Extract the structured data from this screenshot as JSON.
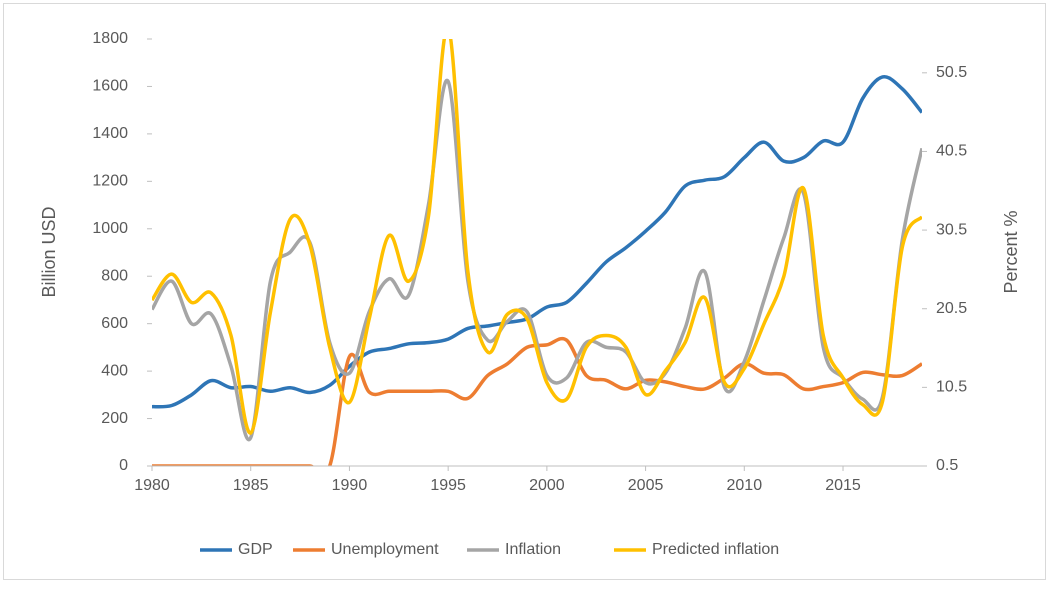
{
  "chart_data": {
    "type": "line",
    "x": [
      1980,
      1981,
      1982,
      1983,
      1984,
      1985,
      1986,
      1987,
      1988,
      1989,
      1990,
      1991,
      1992,
      1993,
      1994,
      1995,
      1996,
      1997,
      1998,
      1999,
      2000,
      2001,
      2002,
      2003,
      2004,
      2005,
      2006,
      2007,
      2008,
      2009,
      2010,
      2011,
      2012,
      2013,
      2014,
      2015,
      2016,
      2017,
      2018,
      2019
    ],
    "xlim": [
      1980,
      2019
    ],
    "xticks": [
      1980,
      1985,
      1990,
      1995,
      2000,
      2005,
      2010,
      2015
    ],
    "ylabel": "Billion USD",
    "ylim": [
      0,
      1800
    ],
    "yticks": [
      0,
      200,
      400,
      600,
      800,
      1000,
      1200,
      1400,
      1600,
      1800
    ],
    "y2label": "Percent %",
    "y2lim": [
      0.5,
      54.8
    ],
    "y2ticks": [
      0.5,
      10.5,
      20.5,
      30.5,
      40.5,
      50.5
    ],
    "legend": "bottom",
    "series": [
      {
        "name": "GDP",
        "color": "#2e75b6",
        "values": [
          250,
          255,
          300,
          360,
          330,
          335,
          315,
          330,
          310,
          340,
          420,
          480,
          495,
          515,
          520,
          535,
          580,
          590,
          605,
          620,
          670,
          690,
          770,
          860,
          920,
          990,
          1070,
          1180,
          1205,
          1220,
          1300,
          1365,
          1285,
          1300,
          1370,
          1365,
          1550,
          1640,
          1590,
          1490
        ]
      },
      {
        "name": "Unemployment",
        "color": "#ed7d31",
        "axis": "y2",
        "values": [
          0.5,
          0.5,
          0.5,
          0.5,
          0.5,
          0.5,
          0.5,
          0.5,
          0.5,
          0.5,
          14.4,
          9.9,
          10.0,
          10.0,
          10.0,
          10.0,
          9.1,
          12.0,
          13.5,
          15.6,
          15.9,
          16.5,
          12.0,
          11.4,
          10.3,
          11.4,
          11.2,
          10.6,
          10.3,
          11.7,
          13.5,
          12.3,
          12.1,
          10.3,
          10.6,
          11.1,
          12.4,
          12.1,
          12.0,
          13.5
        ]
      },
      {
        "name": "Inflation",
        "color": "#a5a5a5",
        "axis": "y2",
        "values": [
          20.4,
          24.0,
          18.6,
          19.8,
          13.2,
          4.1,
          24.0,
          27.7,
          28.9,
          16.2,
          12.3,
          20.1,
          24.3,
          22.2,
          33.7,
          49.4,
          24.0,
          16.5,
          18.9,
          20.1,
          12.0,
          11.7,
          16.2,
          15.6,
          15.0,
          11.1,
          12.3,
          18.0,
          25.2,
          10.5,
          13.8,
          21.6,
          29.5,
          35.2,
          15.6,
          11.7,
          9.0,
          9.3,
          29.2,
          40.9
        ]
      },
      {
        "name": "Predicted inflation",
        "color": "#ffc000",
        "axis": "y2",
        "values": [
          21.6,
          24.9,
          21.3,
          22.5,
          17.1,
          4.7,
          20.1,
          31.9,
          28.6,
          15.6,
          8.6,
          19.2,
          29.8,
          24.0,
          32.2,
          56.3,
          25.2,
          15.0,
          19.8,
          19.2,
          11.1,
          9.0,
          15.6,
          17.1,
          15.6,
          9.6,
          12.6,
          16.2,
          21.9,
          11.1,
          12.9,
          18.6,
          24.6,
          35.8,
          17.1,
          11.7,
          8.3,
          8.7,
          28.3,
          32.2
        ]
      }
    ]
  }
}
